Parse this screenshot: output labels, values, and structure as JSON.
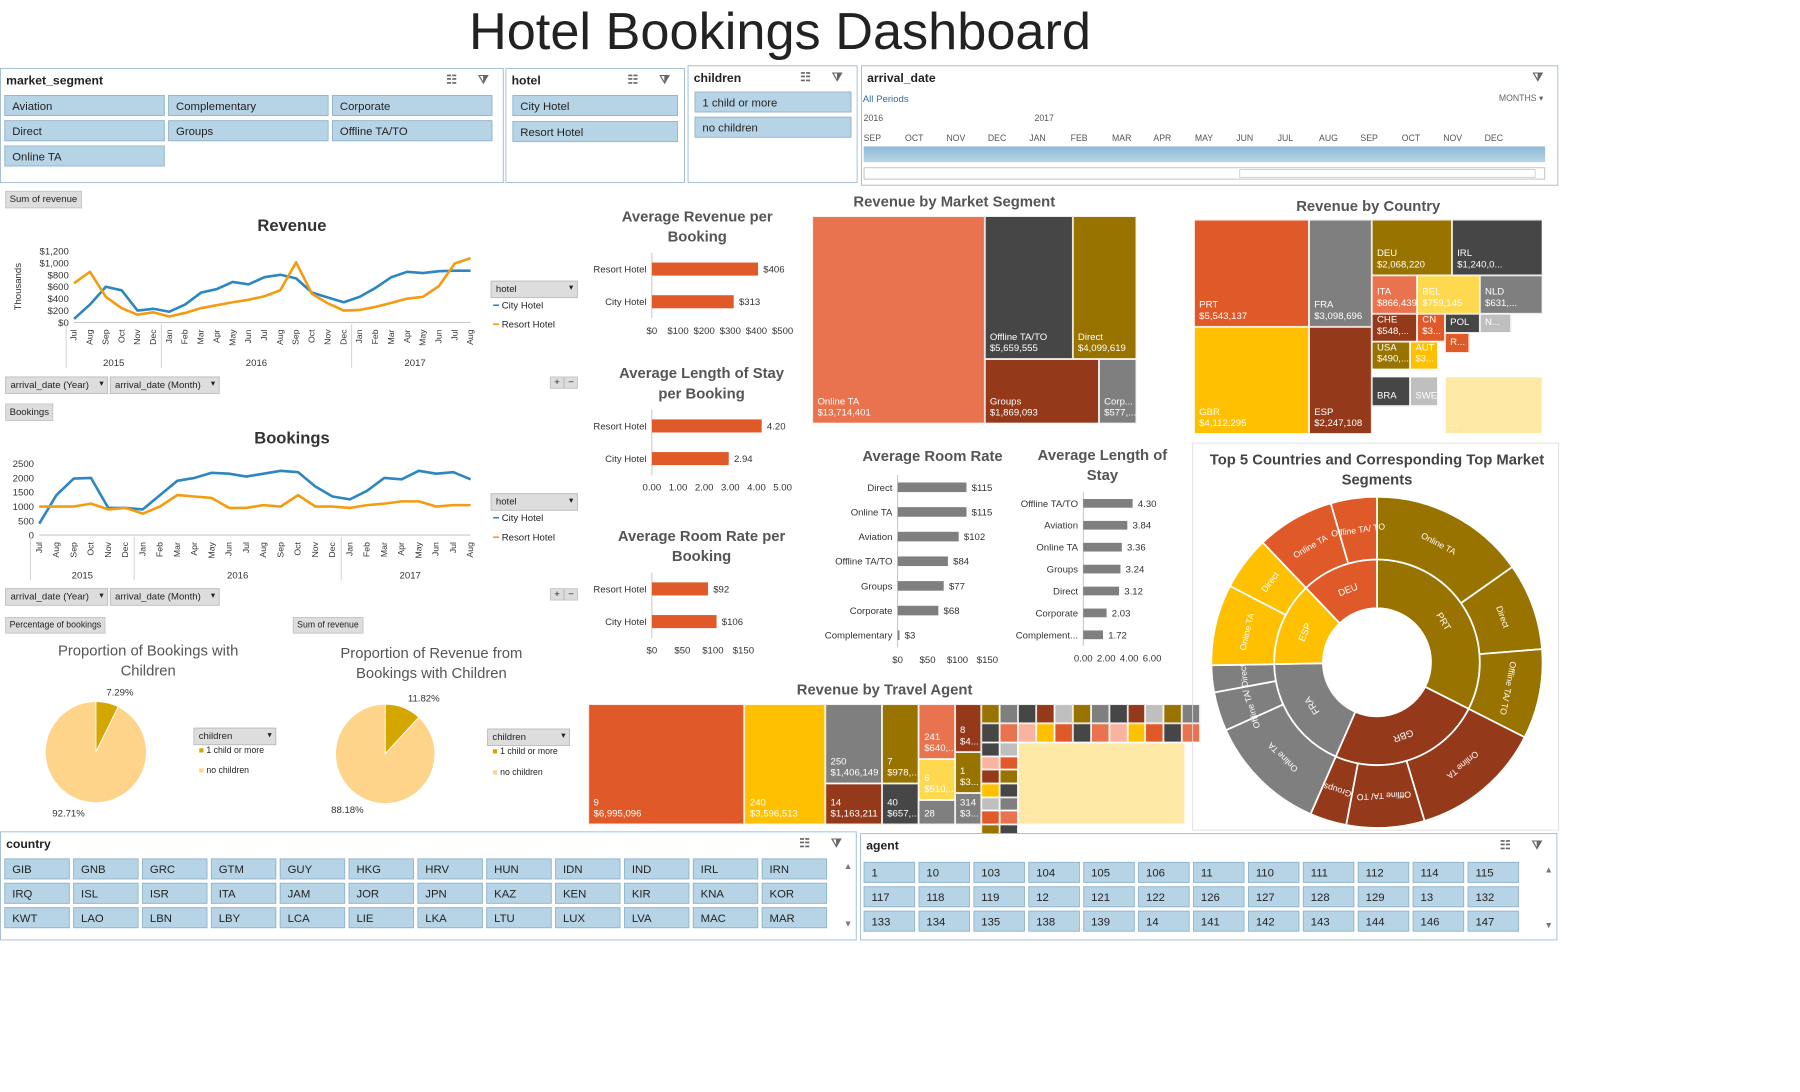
{
  "title": "Hotel Bookings Dashboard",
  "colors": {
    "orange": "#e05a29",
    "yellow": "#fec000",
    "gray": "#7f7f7f",
    "darkgray": "#464646",
    "olive": "#997300",
    "brown": "#943a1a",
    "line_blue": "#2e86c1",
    "line_orange": "#f39c12",
    "chip": "#b7d4e6"
  },
  "slicers": {
    "market_segment": {
      "title": "market_segment",
      "items": [
        "Aviation",
        "Complementary",
        "Corporate",
        "Direct",
        "Groups",
        "Offline TA/TO",
        "Online TA"
      ]
    },
    "hotel": {
      "title": "hotel",
      "items": [
        "City Hotel",
        "Resort Hotel"
      ]
    },
    "children": {
      "title": "children",
      "items": [
        "1 child or more",
        "no children"
      ]
    },
    "country": {
      "title": "country",
      "items": [
        "GIB",
        "GNB",
        "GRC",
        "GTM",
        "GUY",
        "HKG",
        "HRV",
        "HUN",
        "IDN",
        "IND",
        "IRL",
        "IRN",
        "IRQ",
        "ISL",
        "ISR",
        "ITA",
        "JAM",
        "JOR",
        "JPN",
        "KAZ",
        "KEN",
        "KIR",
        "KNA",
        "KOR",
        "KWT",
        "LAO",
        "LBN",
        "LBY",
        "LCA",
        "LIE",
        "LKA",
        "LTU",
        "LUX",
        "LVA",
        "MAC",
        "MAR"
      ]
    },
    "agent": {
      "title": "agent",
      "items": [
        "1",
        "10",
        "103",
        "104",
        "105",
        "106",
        "11",
        "110",
        "111",
        "112",
        "114",
        "115",
        "117",
        "118",
        "119",
        "12",
        "121",
        "122",
        "126",
        "127",
        "128",
        "129",
        "13",
        "132",
        "133",
        "134",
        "135",
        "138",
        "139",
        "14",
        "141",
        "142",
        "143",
        "144",
        "146",
        "147"
      ]
    }
  },
  "timeline": {
    "title": "arrival_date",
    "period": "All Periods",
    "level": "MONTHS",
    "years": [
      "2016",
      "2017"
    ],
    "months": [
      "SEP",
      "OCT",
      "NOV",
      "DEC",
      "JAN",
      "FEB",
      "MAR",
      "APR",
      "MAY",
      "JUN",
      "JUL",
      "AUG",
      "SEP",
      "OCT",
      "NOV",
      "DEC"
    ]
  },
  "pivot": {
    "sum_revenue": "Sum of revenue",
    "bookings": "Bookings",
    "pct_bookings": "Percentage of bookings",
    "field_hotel": "hotel",
    "field_children": "children",
    "field_year": "arrival_date (Year)",
    "field_month": "arrival_date (Month)",
    "expand": "+",
    "collapse": "−"
  },
  "chart_data": [
    {
      "type": "line",
      "title": "Revenue",
      "ylabel": "Thousands",
      "ylim": [
        0,
        1200
      ],
      "yticks": [
        "$0",
        "$200",
        "$400",
        "$600",
        "$800",
        "$1,000",
        "$1,200"
      ],
      "x": [
        "Jul",
        "Aug",
        "Sep",
        "Oct",
        "Nov",
        "Dec",
        "Jan",
        "Feb",
        "Mar",
        "Apr",
        "May",
        "Jun",
        "Jul",
        "Aug",
        "Sep",
        "Oct",
        "Nov",
        "Dec",
        "Jan",
        "Feb",
        "Mar",
        "Apr",
        "May",
        "Jun",
        "Jul",
        "Aug"
      ],
      "year_groups": [
        {
          "label": "2015",
          "n": 6
        },
        {
          "label": "2016",
          "n": 12
        },
        {
          "label": "2017",
          "n": 8
        }
      ],
      "series": [
        {
          "name": "City Hotel",
          "values": [
            60,
            300,
            600,
            540,
            200,
            230,
            180,
            300,
            500,
            560,
            680,
            640,
            760,
            800,
            740,
            500,
            420,
            340,
            430,
            580,
            760,
            850,
            830,
            860,
            870,
            870
          ]
        },
        {
          "name": "Resort Hotel",
          "values": [
            660,
            850,
            430,
            240,
            130,
            170,
            100,
            160,
            240,
            290,
            340,
            380,
            440,
            540,
            1010,
            480,
            320,
            200,
            210,
            260,
            330,
            400,
            430,
            610,
            990,
            1080
          ]
        }
      ]
    },
    {
      "type": "line",
      "title": "Bookings",
      "ylim": [
        0,
        2500
      ],
      "yticks": [
        "0",
        "500",
        "1000",
        "1500",
        "2000",
        "2500"
      ],
      "x": [
        "Jul",
        "Aug",
        "Sep",
        "Oct",
        "Nov",
        "Dec",
        "Jan",
        "Feb",
        "Mar",
        "Apr",
        "May",
        "Jun",
        "Jul",
        "Aug",
        "Sep",
        "Oct",
        "Nov",
        "Dec",
        "Jan",
        "Feb",
        "Mar",
        "Apr",
        "May",
        "Jun",
        "Jul",
        "Aug"
      ],
      "year_groups": [
        {
          "label": "2015",
          "n": 6
        },
        {
          "label": "2016",
          "n": 12
        },
        {
          "label": "2017",
          "n": 8
        }
      ],
      "series": [
        {
          "name": "City Hotel",
          "values": [
            400,
            1400,
            1980,
            2000,
            950,
            950,
            900,
            1400,
            1900,
            2000,
            2180,
            2150,
            2050,
            2150,
            2250,
            2200,
            1700,
            1350,
            1250,
            1550,
            2000,
            1950,
            2250,
            2150,
            2200,
            1950
          ]
        },
        {
          "name": "Resort Hotel",
          "values": [
            1000,
            1000,
            1000,
            1100,
            900,
            950,
            750,
            1000,
            1400,
            1350,
            1300,
            950,
            950,
            1050,
            1000,
            1400,
            1000,
            1000,
            950,
            1050,
            1100,
            1180,
            1180,
            1000,
            1050,
            1050
          ]
        }
      ]
    },
    {
      "type": "bar",
      "title": "Average Revenue per Booking",
      "categories": [
        "Resort Hotel",
        "City Hotel"
      ],
      "values": [
        406,
        313
      ],
      "labels": [
        "$406",
        "$313"
      ],
      "xlim": [
        0,
        500
      ],
      "xticks": [
        "$0",
        "$100",
        "$200",
        "$300",
        "$400",
        "$500"
      ]
    },
    {
      "type": "bar",
      "title": "Average Length of Stay per Booking",
      "categories": [
        "Resort Hotel",
        "City Hotel"
      ],
      "values": [
        4.2,
        2.94
      ],
      "labels": [
        "4.20",
        "2.94"
      ],
      "xlim": [
        0,
        5
      ],
      "xticks": [
        "0.00",
        "1.00",
        "2.00",
        "3.00",
        "4.00",
        "5.00"
      ]
    },
    {
      "type": "bar",
      "title": "Average Room Rate per Booking",
      "categories": [
        "Resort Hotel",
        "City Hotel"
      ],
      "values": [
        92,
        106
      ],
      "labels": [
        "$92",
        "$106"
      ],
      "xlim": [
        0,
        150
      ],
      "xticks": [
        "$0",
        "$50",
        "$100",
        "$150"
      ]
    },
    {
      "type": "bar",
      "title": "Average Room Rate",
      "categories": [
        "Direct",
        "Online TA",
        "Aviation",
        "Offline TA/TO",
        "Groups",
        "Corporate",
        "Complementary"
      ],
      "values": [
        115,
        115,
        102,
        84,
        77,
        68,
        3
      ],
      "labels": [
        "$115",
        "$115",
        "$102",
        "$84",
        "$77",
        "$68",
        "$3"
      ],
      "xlim": [
        0,
        150
      ],
      "xticks": [
        "$0",
        "$50",
        "$100",
        "$150"
      ]
    },
    {
      "type": "bar",
      "title": "Average Length of Stay",
      "categories": [
        "Offline TA/TO",
        "Aviation",
        "Online TA",
        "Groups",
        "Direct",
        "Corporate",
        "Complement..."
      ],
      "values": [
        4.3,
        3.84,
        3.36,
        3.24,
        3.12,
        2.03,
        1.72
      ],
      "labels": [
        "4.30",
        "3.84",
        "3.36",
        "3.24",
        "3.12",
        "2.03",
        "1.72"
      ],
      "xlim": [
        0,
        6
      ],
      "xticks": [
        "0.00",
        "2.00",
        "4.00",
        "6.00"
      ]
    },
    {
      "type": "pie",
      "title": "Proportion of Bookings with Children",
      "legend_title": "children",
      "categories": [
        "1 child or more",
        "no children"
      ],
      "values": [
        7.29,
        92.71
      ],
      "labels": [
        "7.29%",
        "92.71%"
      ]
    },
    {
      "type": "pie",
      "title": "Proportion of Revenue from Bookings with Children",
      "legend_title": "children",
      "categories": [
        "1 child or more",
        "no children"
      ],
      "values": [
        11.82,
        88.18
      ],
      "labels": [
        "11.82%",
        "88.18%"
      ]
    },
    {
      "type": "treemap",
      "title": "Revenue by Market Segment",
      "items": [
        {
          "label": "Online TA",
          "value": "$13,714,401"
        },
        {
          "label": "Offline TA/TO",
          "value": "$5,659,555"
        },
        {
          "label": "Direct",
          "value": "$4,099,619"
        },
        {
          "label": "Groups",
          "value": "$1,869,093"
        },
        {
          "label": "Corp...",
          "value": "$577,..."
        }
      ]
    },
    {
      "type": "treemap",
      "title": "Revenue by Country",
      "items": [
        {
          "label": "PRT",
          "value": "$5,543,137"
        },
        {
          "label": "GBR",
          "value": "$4,112,295"
        },
        {
          "label": "FRA",
          "value": "$3,098,696"
        },
        {
          "label": "ESP",
          "value": "$2,247,108"
        },
        {
          "label": "DEU",
          "value": "$2,068,220"
        },
        {
          "label": "IRL",
          "value": "$1,240,0..."
        },
        {
          "label": "ITA",
          "value": "$866,439"
        },
        {
          "label": "BEL",
          "value": "$759,145"
        },
        {
          "label": "NLD",
          "value": "$631,..."
        },
        {
          "label": "CHE",
          "value": "$548,..."
        },
        {
          "label": "CN",
          "value": "$3..."
        },
        {
          "label": "USA",
          "value": "$490,..."
        },
        {
          "label": "AUT",
          "value": "$3..."
        },
        {
          "label": "POL",
          "value": ""
        },
        {
          "label": "N...",
          "value": ""
        },
        {
          "label": "R...",
          "value": ""
        },
        {
          "label": "BRA",
          "value": ""
        },
        {
          "label": "SWE",
          "value": ""
        },
        {
          "label": "...",
          "value": ""
        }
      ]
    },
    {
      "type": "treemap",
      "title": "Revenue by Travel Agent",
      "items": [
        {
          "label": "9",
          "value": "$6,995,096"
        },
        {
          "label": "240",
          "value": "$3,596,513"
        },
        {
          "label": "250",
          "value": "$1,406,149"
        },
        {
          "label": "14",
          "value": "$1,163,211"
        },
        {
          "label": "7",
          "value": "$978,..."
        },
        {
          "label": "40",
          "value": "$657,..."
        },
        {
          "label": "241",
          "value": "$640,..."
        },
        {
          "label": "6",
          "value": "$510,..."
        },
        {
          "label": "28",
          "value": ""
        },
        {
          "label": "8",
          "value": "$4..."
        },
        {
          "label": "1",
          "value": "$3..."
        },
        {
          "label": "314",
          "value": "$3..."
        },
        {
          "label": "...",
          "value": ""
        }
      ]
    },
    {
      "type": "sunburst",
      "title": "Top 5 Countries and Corresponding Top Market Segments",
      "inner": [
        {
          "label": "PRT",
          "value": 5543137
        },
        {
          "label": "GBR",
          "value": 4112295
        },
        {
          "label": "FRA",
          "value": 3098696
        },
        {
          "label": "ESP",
          "value": 2247108
        },
        {
          "label": "DEU",
          "value": 2068220
        }
      ],
      "outer": [
        {
          "parent": "PRT",
          "label": "Online TA",
          "value": 2600000
        },
        {
          "parent": "PRT",
          "label": "Direct",
          "value": 1450000
        },
        {
          "parent": "PRT",
          "label": "Offline TA/ TO",
          "value": 1493137
        },
        {
          "parent": "GBR",
          "label": "Online TA",
          "value": 2200000
        },
        {
          "parent": "GBR",
          "label": "Offline TA/ TO",
          "value": 1300000
        },
        {
          "parent": "GBR",
          "label": "Groups",
          "value": 612295
        },
        {
          "parent": "FRA",
          "label": "Online TA",
          "value": 2000000
        },
        {
          "parent": "FRA",
          "label": "Offline TA/ TO",
          "value": 650000
        },
        {
          "parent": "FRA",
          "label": "Direct",
          "value": 448696
        },
        {
          "parent": "ESP",
          "label": "Online TA",
          "value": 1350000
        },
        {
          "parent": "ESP",
          "label": "Direct",
          "value": 897108
        },
        {
          "parent": "DEU",
          "label": "Online TA",
          "value": 1300000
        },
        {
          "parent": "DEU",
          "label": "Offline TA/ TO",
          "value": 768220
        }
      ]
    }
  ]
}
